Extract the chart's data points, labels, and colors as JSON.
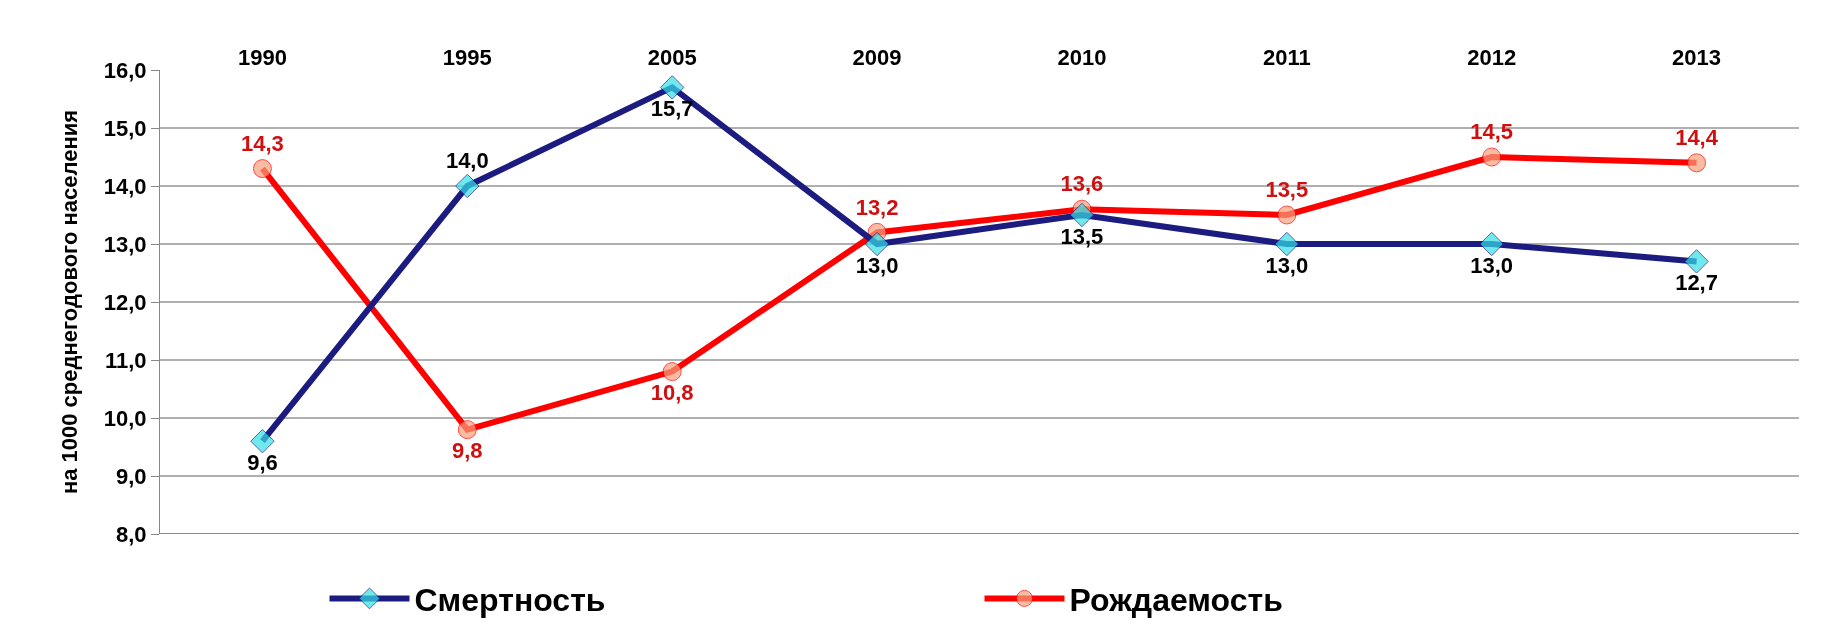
{
  "chart_data": {
    "type": "line",
    "ylabel": "на 1000 среднегодового населения",
    "categories": [
      "1990",
      "1995",
      "2005",
      "2009",
      "2010",
      "2011",
      "2012",
      "2013"
    ],
    "series": [
      {
        "name": "Смертность",
        "color": "#1c1c80",
        "colors": [
          "#33e0e8",
          "#33e0e8",
          "#33e0e8",
          "#33e0e8",
          "#33e0e8",
          "#33e0e8",
          "#33e0e8",
          "#33e0e8"
        ],
        "marker": "diamond",
        "values": [
          9.6,
          14.0,
          15.7,
          13.0,
          13.5,
          13.0,
          13.0,
          12.7
        ],
        "value_labels": [
          "9,6",
          "14,0",
          "15,7",
          "13,0",
          "13,5",
          "13,0",
          "13,0",
          "12,7"
        ]
      },
      {
        "name": "Рождаемость",
        "color": "#ff0000",
        "colors": [
          "#f4a07c",
          "#f4a07c",
          "#f4a07c",
          "#f4a07c",
          "#f4a07c",
          "#f4a07c",
          "#f4a07c",
          "#f4a07c"
        ],
        "marker": "circle",
        "values": [
          14.3,
          9.8,
          10.8,
          13.2,
          13.6,
          13.5,
          14.5,
          14.4
        ],
        "value_labels": [
          "14,3",
          "9,8",
          "10,8",
          "13,2",
          "13,6",
          "13,5",
          "14,5",
          "14,4"
        ]
      }
    ],
    "ylim": [
      8,
      16
    ],
    "yticks": [
      {
        "value": 8,
        "label": "8,0"
      },
      {
        "value": 9,
        "label": "9,0"
      },
      {
        "value": 10,
        "label": "10,0"
      },
      {
        "value": 11,
        "label": "11,0"
      },
      {
        "value": 12,
        "label": "12,0"
      },
      {
        "value": 13,
        "label": "13,0"
      },
      {
        "value": 14,
        "label": "14,0"
      },
      {
        "value": 15,
        "label": "15,0"
      },
      {
        "value": 16,
        "label": "16,0"
      }
    ],
    "grid": "y",
    "legend": "bottom",
    "line_style": "solid"
  }
}
